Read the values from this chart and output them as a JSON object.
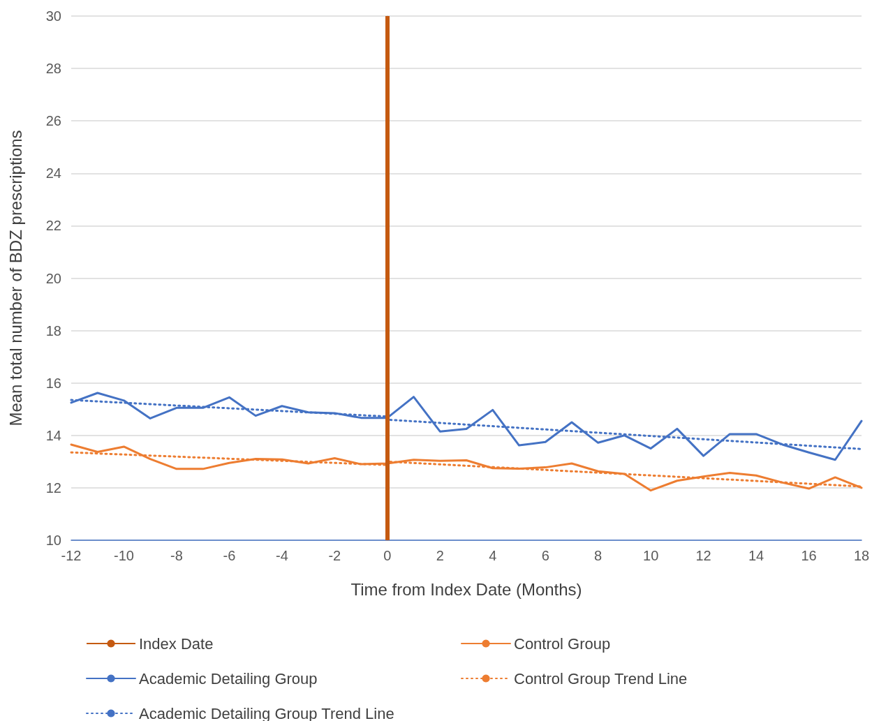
{
  "chart_data": {
    "type": "line",
    "xlabel": "Time from Index Date (Months)",
    "ylabel": "Mean total number of BDZ prescriptions",
    "x": [
      -12,
      -11,
      -10,
      -9,
      -8,
      -7,
      -6,
      -5,
      -4,
      -3,
      -2,
      -1,
      0,
      1,
      2,
      3,
      4,
      5,
      6,
      7,
      8,
      9,
      10,
      11,
      12,
      13,
      14,
      15,
      16,
      17,
      18
    ],
    "xlim": [
      -12,
      18
    ],
    "xticks": [
      -12,
      -10,
      -8,
      -6,
      -4,
      -2,
      0,
      2,
      4,
      6,
      8,
      10,
      12,
      14,
      16,
      18
    ],
    "ylim": [
      10,
      30
    ],
    "yticks": [
      10,
      12,
      14,
      16,
      18,
      20,
      22,
      24,
      26,
      28,
      30
    ],
    "grid": "y",
    "legend": "bottom",
    "marker": "none",
    "ref_lines": [
      {
        "axis": "x",
        "value": 0,
        "label": "Index Date",
        "color": "#c55a11",
        "line_style": "solid"
      }
    ],
    "series": [
      {
        "name": "Control Group",
        "color": "#ed7d31",
        "line_style": "solid",
        "values": [
          13.65,
          13.37,
          13.57,
          13.1,
          12.72,
          12.72,
          12.95,
          13.1,
          13.08,
          12.93,
          13.13,
          12.9,
          12.93,
          13.07,
          13.03,
          13.05,
          12.75,
          12.73,
          12.78,
          12.93,
          12.63,
          12.53,
          11.9,
          12.27,
          12.43,
          12.57,
          12.47,
          12.2,
          11.97,
          12.4,
          12.0
        ]
      },
      {
        "name": "Academic Detailing Group",
        "color": "#4472c4",
        "line_style": "solid",
        "values": [
          15.25,
          15.62,
          15.33,
          14.65,
          15.05,
          15.05,
          15.45,
          14.75,
          15.12,
          14.88,
          14.85,
          14.67,
          14.67,
          15.47,
          14.15,
          14.25,
          14.97,
          13.62,
          13.75,
          14.5,
          13.72,
          14.0,
          13.5,
          14.25,
          13.22,
          14.05,
          14.05,
          13.65,
          13.35,
          13.07,
          14.55
        ]
      },
      {
        "name": "Control Group Trend Line",
        "color": "#ed7d31",
        "line_style": "dotted",
        "x": [
          -12,
          0,
          0,
          18
        ],
        "values": [
          13.35,
          12.87,
          13.0,
          12.05
        ]
      },
      {
        "name": "Academic Detailing Group Trend Line",
        "color": "#4472c4",
        "line_style": "dotted",
        "x": [
          -12,
          0,
          0,
          18
        ],
        "values": [
          15.35,
          14.72,
          14.6,
          13.48
        ]
      }
    ]
  }
}
